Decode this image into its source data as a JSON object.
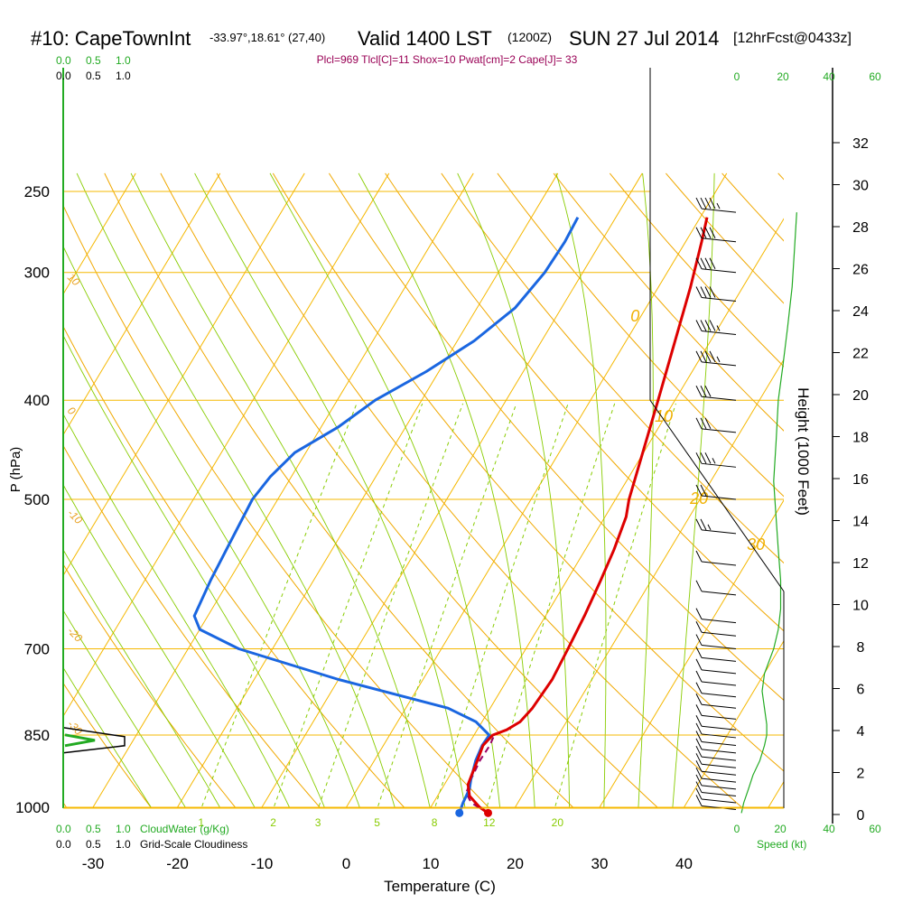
{
  "header": {
    "station": "#10: CapeTownInt",
    "coords": "-33.97°,18.61° (27,40)",
    "valid": "Valid 1400 LST",
    "utc": "(1200Z)",
    "date": "SUN 27 Jul 2014",
    "forecast": "[12hrFcst@0433z]",
    "params": "Plcl=969 Tlcl[C]=11 Shox=10 Pwat[cm]=2 Cape[J]= 33"
  },
  "labels": {
    "xlabel": "Temperature (C)",
    "ylabel": "P (hPa)",
    "height_label": "Height (1000 Feet)",
    "cloud_water": "CloudWater (g/Kg)",
    "cloudiness": "Grid-Scale Cloudiness",
    "speed": "Speed (kt)"
  },
  "scales": {
    "cloud_top_green": [
      "0.0",
      "0.5",
      "1.0"
    ],
    "cloud_top_black": [
      "0.0",
      "0.5",
      "1.0"
    ],
    "cloud_bottom_green": [
      "0.0",
      "0.5",
      "1.0"
    ],
    "cloud_bottom_black": [
      "0.0",
      "0.5",
      "1.0"
    ],
    "speed_top": [
      "0",
      "20",
      "40",
      "60"
    ],
    "speed_bottom": [
      "0",
      "20",
      "40",
      "60"
    ]
  },
  "chart_data": {
    "type": "line",
    "title": "#10: CapeTownInt",
    "xlabel": "Temperature (C)",
    "ylabel": "P (hPa)",
    "x_ticks": [
      -30,
      -20,
      -10,
      0,
      10,
      20,
      30,
      40
    ],
    "pressure_ticks": [
      250,
      300,
      400,
      500,
      700,
      850,
      1000
    ],
    "height_ticks_kft": [
      0,
      2,
      4,
      6,
      8,
      10,
      12,
      14,
      16,
      18,
      20,
      22,
      24,
      26,
      28,
      30,
      32
    ],
    "xlim": [
      -34,
      52
    ],
    "ylim_hpa": [
      1015,
      250
    ],
    "isotherm_labels": [
      0,
      10,
      20,
      30
    ],
    "mixing_ratio_labels": [
      1,
      2,
      3,
      5,
      8,
      12,
      20
    ],
    "dry_adiabat_labels": [
      10,
      0,
      -10,
      -20,
      -30
    ],
    "series": [
      {
        "name": "Temperature",
        "color": "#dd0000",
        "points": [
          [
            17.2,
            1013
          ],
          [
            15.8,
            1000
          ],
          [
            13.8,
            975
          ],
          [
            12.8,
            950
          ],
          [
            12.5,
            925
          ],
          [
            12.2,
            900
          ],
          [
            11.8,
            870
          ],
          [
            12.2,
            850
          ],
          [
            13.5,
            840
          ],
          [
            14.5,
            825
          ],
          [
            15.0,
            800
          ],
          [
            15.3,
            750
          ],
          [
            15.0,
            700
          ],
          [
            14.6,
            650
          ],
          [
            14.0,
            600
          ],
          [
            13.4,
            560
          ],
          [
            12.5,
            520
          ],
          [
            11.6,
            500
          ],
          [
            9.9,
            450
          ],
          [
            8.0,
            400
          ],
          [
            5.8,
            350
          ],
          [
            3.8,
            310
          ],
          [
            1.9,
            280
          ],
          [
            0.8,
            265
          ]
        ]
      },
      {
        "name": "Dewpoint",
        "color": "#1a66e0",
        "points": [
          [
            13.8,
            1013
          ],
          [
            13.5,
            990
          ],
          [
            13.3,
            960
          ],
          [
            12.8,
            940
          ],
          [
            12.5,
            925
          ],
          [
            12.0,
            900
          ],
          [
            11.7,
            870
          ],
          [
            11.8,
            850
          ],
          [
            9.3,
            825
          ],
          [
            5.0,
            800
          ],
          [
            -10.0,
            750
          ],
          [
            -24.0,
            700
          ],
          [
            -30.0,
            670
          ],
          [
            -31.6,
            650
          ],
          [
            -32.2,
            600
          ],
          [
            -32.6,
            550
          ],
          [
            -33.0,
            500
          ],
          [
            -32.5,
            475
          ],
          [
            -31.3,
            450
          ],
          [
            -28.0,
            425
          ],
          [
            -25.5,
            400
          ],
          [
            -21.5,
            375
          ],
          [
            -18.0,
            350
          ],
          [
            -15.5,
            325
          ],
          [
            -14.5,
            300
          ],
          [
            -14.3,
            280
          ],
          [
            -14.5,
            265
          ]
        ]
      },
      {
        "name": "Parcel",
        "color": "#990066",
        "points": [
          [
            17.2,
            1013
          ],
          [
            14.5,
            990
          ],
          [
            13.2,
            969
          ],
          [
            12.8,
            940
          ],
          [
            12.5,
            900
          ],
          [
            12.6,
            870
          ],
          [
            12.4,
            850
          ]
        ]
      }
    ],
    "wind_barbs": [
      {
        "p": 1005,
        "speed_kt": 10
      },
      {
        "p": 990,
        "speed_kt": 10
      },
      {
        "p": 975,
        "speed_kt": 10
      },
      {
        "p": 960,
        "speed_kt": 10
      },
      {
        "p": 945,
        "speed_kt": 10
      },
      {
        "p": 930,
        "speed_kt": 10
      },
      {
        "p": 915,
        "speed_kt": 10
      },
      {
        "p": 900,
        "speed_kt": 10
      },
      {
        "p": 885,
        "speed_kt": 10
      },
      {
        "p": 870,
        "speed_kt": 10
      },
      {
        "p": 855,
        "speed_kt": 10
      },
      {
        "p": 840,
        "speed_kt": 10
      },
      {
        "p": 820,
        "speed_kt": 10
      },
      {
        "p": 800,
        "speed_kt": 10
      },
      {
        "p": 780,
        "speed_kt": 10
      },
      {
        "p": 760,
        "speed_kt": 10
      },
      {
        "p": 740,
        "speed_kt": 10
      },
      {
        "p": 720,
        "speed_kt": 10
      },
      {
        "p": 700,
        "speed_kt": 10
      },
      {
        "p": 680,
        "speed_kt": 10
      },
      {
        "p": 660,
        "speed_kt": 10
      },
      {
        "p": 620,
        "speed_kt": 10
      },
      {
        "p": 580,
        "speed_kt": 10
      },
      {
        "p": 540,
        "speed_kt": 15
      },
      {
        "p": 500,
        "speed_kt": 20
      },
      {
        "p": 465,
        "speed_kt": 25
      },
      {
        "p": 430,
        "speed_kt": 30
      },
      {
        "p": 400,
        "speed_kt": 30
      },
      {
        "p": 370,
        "speed_kt": 35
      },
      {
        "p": 345,
        "speed_kt": 35
      },
      {
        "p": 320,
        "speed_kt": 40
      },
      {
        "p": 300,
        "speed_kt": 40
      },
      {
        "p": 280,
        "speed_kt": 40
      },
      {
        "p": 262,
        "speed_kt": 35
      }
    ],
    "wind_speed_profile": [
      [
        2,
        1013
      ],
      [
        3,
        990
      ],
      [
        5,
        960
      ],
      [
        7,
        930
      ],
      [
        10,
        900
      ],
      [
        12,
        870
      ],
      [
        13,
        850
      ],
      [
        13,
        830
      ],
      [
        12,
        800
      ],
      [
        11,
        770
      ],
      [
        12,
        740
      ],
      [
        16,
        700
      ],
      [
        18,
        670
      ],
      [
        19,
        640
      ],
      [
        19,
        600
      ],
      [
        18,
        560
      ],
      [
        17,
        520
      ],
      [
        16,
        480
      ],
      [
        17,
        440
      ],
      [
        18,
        400
      ],
      [
        20,
        370
      ],
      [
        22,
        340
      ],
      [
        24,
        310
      ],
      [
        25,
        285
      ],
      [
        26,
        262
      ]
    ],
    "wind_speed_envelope": [
      [
        2,
        1013
      ],
      [
        2,
        980
      ],
      [
        4,
        950
      ],
      [
        5,
        900
      ],
      [
        18,
        750
      ],
      [
        27,
        680
      ],
      [
        27,
        620
      ],
      [
        24,
        500
      ],
      [
        12,
        420
      ],
      [
        5,
        400
      ]
    ],
    "colors": {
      "isobar": "#f5b800",
      "isotherm": "#f5b800",
      "dry_adiabat": "#f0a800",
      "moist_adiabat": "#88cc00",
      "mixing_ratio": "#88cc00",
      "temperature": "#dd0000",
      "dewpoint": "#1a66e0",
      "parcel": "#990066",
      "wind_speed": "#22aa22",
      "cloud_green": "#22aa22"
    }
  }
}
